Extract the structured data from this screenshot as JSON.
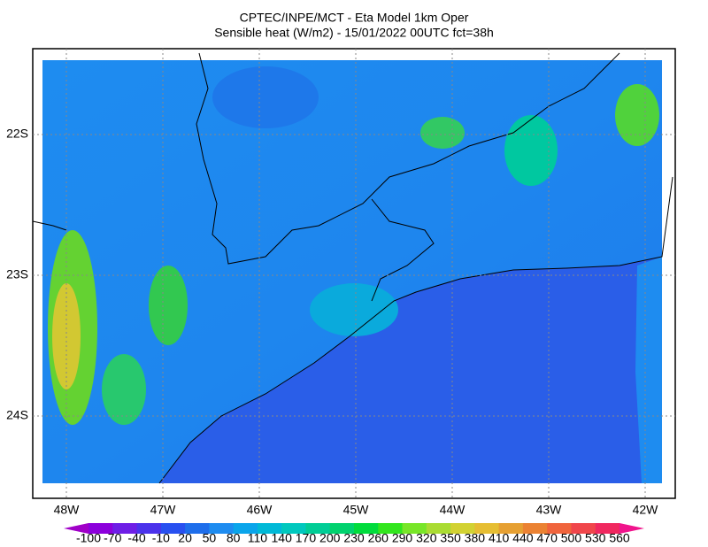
{
  "title": [
    "CPTEC/INPE/MCT -  Eta Model 1km Oper",
    "Sensible heat (W/m2) - 15/01/2022 00UTC fct=38h"
  ],
  "lat_labels": [
    "22S",
    "23S",
    "24S"
  ],
  "lon_labels": [
    "48W",
    "47W",
    "46W",
    "45W",
    "44W",
    "43W",
    "42W"
  ],
  "colorbar": {
    "labels": [
      "-100",
      "-70",
      "-40",
      "-10",
      "20",
      "50",
      "80",
      "110",
      "140",
      "170",
      "200",
      "230",
      "260",
      "290",
      "320",
      "350",
      "380",
      "410",
      "440",
      "470",
      "500",
      "530",
      "560"
    ],
    "colors": [
      "#a000c8",
      "#8c00dc",
      "#6e1ee6",
      "#4b32eb",
      "#2850f0",
      "#1e6eeb",
      "#1e8cf0",
      "#0aa5eb",
      "#00b9d7",
      "#00c8be",
      "#00cd96",
      "#00d26e",
      "#00dc3c",
      "#32e61e",
      "#78e628",
      "#aadc32",
      "#d2d232",
      "#e6be32",
      "#e6a032",
      "#eb8232",
      "#f0643c",
      "#f0464b",
      "#f0285f",
      "#f0148c"
    ]
  }
}
